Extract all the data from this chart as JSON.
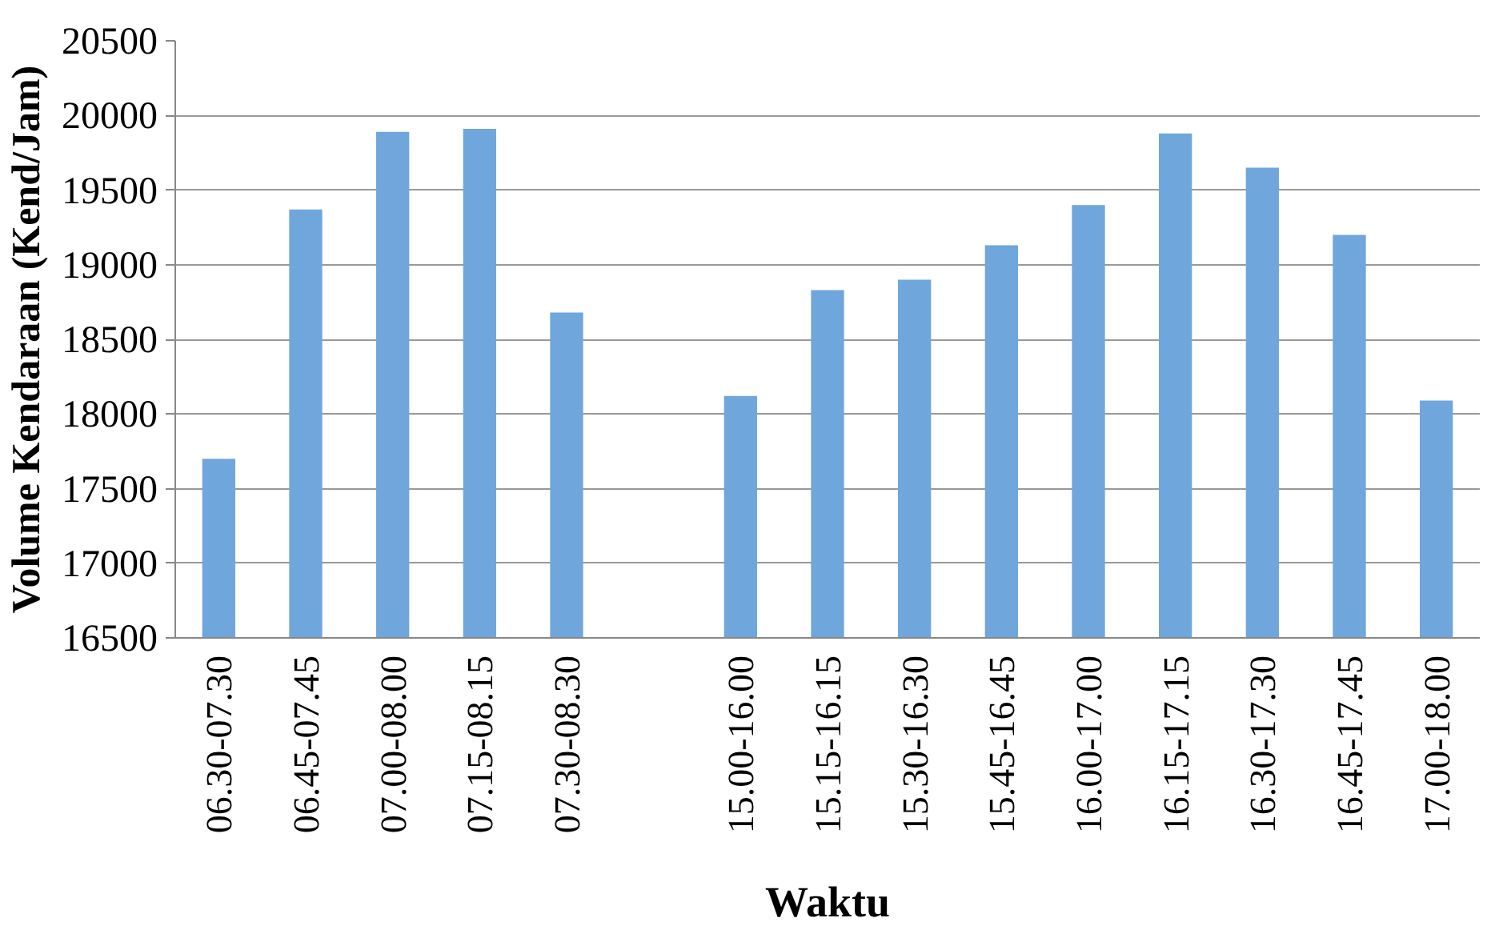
{
  "chart_data": {
    "type": "bar",
    "xlabel": "Waktu",
    "ylabel": "Volume Kendaraan (Kend/Jam)",
    "categories": [
      "06.30-07.30",
      "06.45-07.45",
      "07.00-08.00",
      "07.15-08.15",
      "07.30-08.30",
      null,
      "15.00-16.00",
      "15.15-16.15",
      "15.30-16.30",
      "15.45-16.45",
      "16.00-17.00",
      "16.15-17.15",
      "16.30-17.30",
      "16.45-17.45",
      "17.00-18.00"
    ],
    "values": [
      17700,
      19370,
      19890,
      19910,
      18680,
      null,
      18120,
      18830,
      18900,
      19130,
      19400,
      19880,
      19650,
      19200,
      18090
    ],
    "color": "#6fa6dc",
    "ylim": [
      16500,
      20500
    ],
    "yticks": [
      16500,
      17000,
      17500,
      18000,
      18500,
      19000,
      19500,
      20000,
      20500
    ],
    "grid": "y"
  }
}
